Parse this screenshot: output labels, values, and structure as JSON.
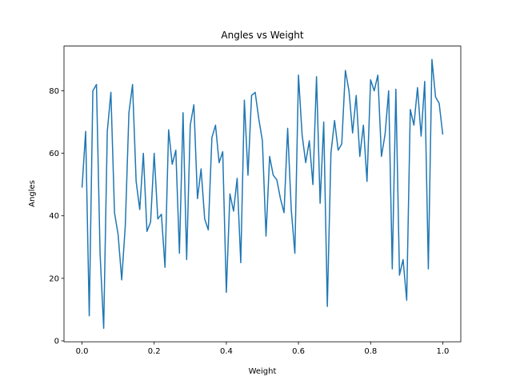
{
  "chart_data": {
    "type": "line",
    "title": "Angles vs Weight",
    "x_label": "Weight",
    "y_label": "Angles",
    "x": [
      0,
      0.01,
      0.02,
      0.03,
      0.04,
      0.05,
      0.06,
      0.07,
      0.08,
      0.09,
      0.1,
      0.11,
      0.12,
      0.13,
      0.14,
      0.15,
      0.16,
      0.17,
      0.18,
      0.19,
      0.2,
      0.21,
      0.22,
      0.23,
      0.24,
      0.25,
      0.26,
      0.27,
      0.28,
      0.29,
      0.3,
      0.31,
      0.32,
      0.33,
      0.34,
      0.35,
      0.36,
      0.37,
      0.38,
      0.39,
      0.4,
      0.41,
      0.42,
      0.43,
      0.44,
      0.45,
      0.46,
      0.47,
      0.48,
      0.49,
      0.5,
      0.51,
      0.52,
      0.53,
      0.54,
      0.55,
      0.56,
      0.57,
      0.58,
      0.59,
      0.6,
      0.61,
      0.62,
      0.63,
      0.64,
      0.65,
      0.66,
      0.67,
      0.68,
      0.69,
      0.7,
      0.71,
      0.72,
      0.73,
      0.74,
      0.75,
      0.76,
      0.77,
      0.78,
      0.79,
      0.8,
      0.81,
      0.82,
      0.83,
      0.84,
      0.85,
      0.86,
      0.87,
      0.88,
      0.89,
      0.9,
      0.91,
      0.92,
      0.93,
      0.94,
      0.95,
      0.96,
      0.97,
      0.98,
      0.99,
      1
    ],
    "series": [
      {
        "name": "Angles",
        "color": "#1f77b4",
        "values": [
          49,
          67,
          8,
          80,
          82,
          28,
          4,
          67,
          79.5,
          41,
          34,
          19.5,
          37,
          73,
          82,
          51,
          42,
          60,
          35,
          38,
          60,
          39,
          40.5,
          23.5,
          67.5,
          56.5,
          61,
          28,
          73,
          26,
          69,
          75.5,
          45.5,
          55,
          39,
          35.5,
          65,
          69,
          57,
          60.5,
          15.5,
          47,
          41.5,
          52,
          25,
          77,
          53,
          78.5,
          79.5,
          71,
          64,
          33.5,
          59,
          53,
          51.5,
          45.5,
          41,
          68,
          42,
          28,
          85,
          66,
          57,
          64,
          50,
          84.5,
          44,
          70,
          11,
          60,
          70.5,
          61,
          63,
          86.5,
          80,
          66.5,
          78.5,
          59,
          69,
          51,
          83.5,
          80,
          85,
          59,
          66,
          80,
          23,
          80.5,
          21,
          26,
          13,
          74,
          69,
          81,
          65.5,
          83,
          23,
          90,
          78,
          76,
          66
        ]
      }
    ],
    "xlim": [
      -0.05,
      1.05
    ],
    "ylim": [
      -0.3,
      94.3
    ],
    "xticks": [
      {
        "value": 0,
        "label": "0.0"
      },
      {
        "value": 0.2,
        "label": "0.2"
      },
      {
        "value": 0.4,
        "label": "0.4"
      },
      {
        "value": 0.6,
        "label": "0.6"
      },
      {
        "value": 0.8,
        "label": "0.8"
      },
      {
        "value": 1,
        "label": "1.0"
      }
    ],
    "yticks": [
      0,
      20,
      40,
      60,
      80
    ]
  }
}
